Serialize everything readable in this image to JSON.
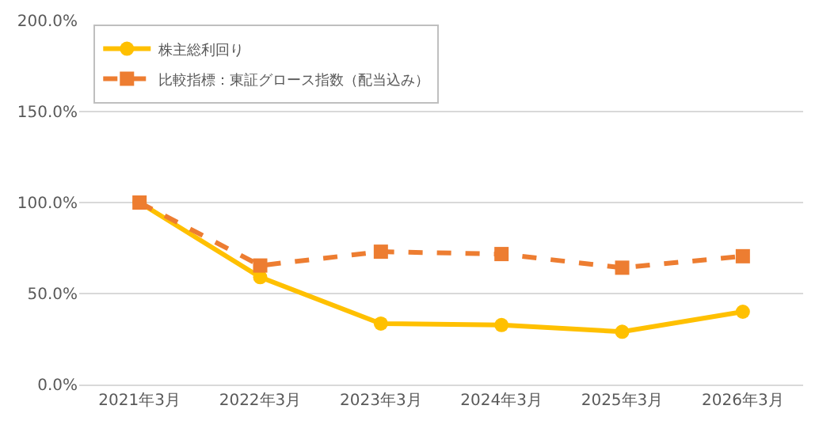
{
  "chart_data": {
    "type": "line",
    "categories": [
      "2021年3月",
      "2022年3月",
      "2023年3月",
      "2024年3月",
      "2025年3月",
      "2026年3月"
    ],
    "series": [
      {
        "name": "株主総利回り",
        "color": "#ffc000",
        "marker": "circle",
        "line_style": "solid",
        "values": [
          100,
          59,
          33.5,
          32.7,
          29,
          40
        ]
      },
      {
        "name": "比較指標：東証グロース指数（配当込み）",
        "color": "#ed7d31",
        "marker": "square",
        "line_style": "dashed",
        "values": [
          100,
          65.4,
          73,
          71.7,
          64.2,
          70.5
        ]
      }
    ],
    "ylim": [
      0,
      200
    ],
    "yticks": [
      {
        "value": 0,
        "label": "0.0%"
      },
      {
        "value": 50,
        "label": "50.0%"
      },
      {
        "value": 100,
        "label": "100.0%"
      },
      {
        "value": 150,
        "label": "150.0%"
      },
      {
        "value": 200,
        "label": "200.0%"
      }
    ],
    "grid": "y",
    "legend": "top left"
  }
}
